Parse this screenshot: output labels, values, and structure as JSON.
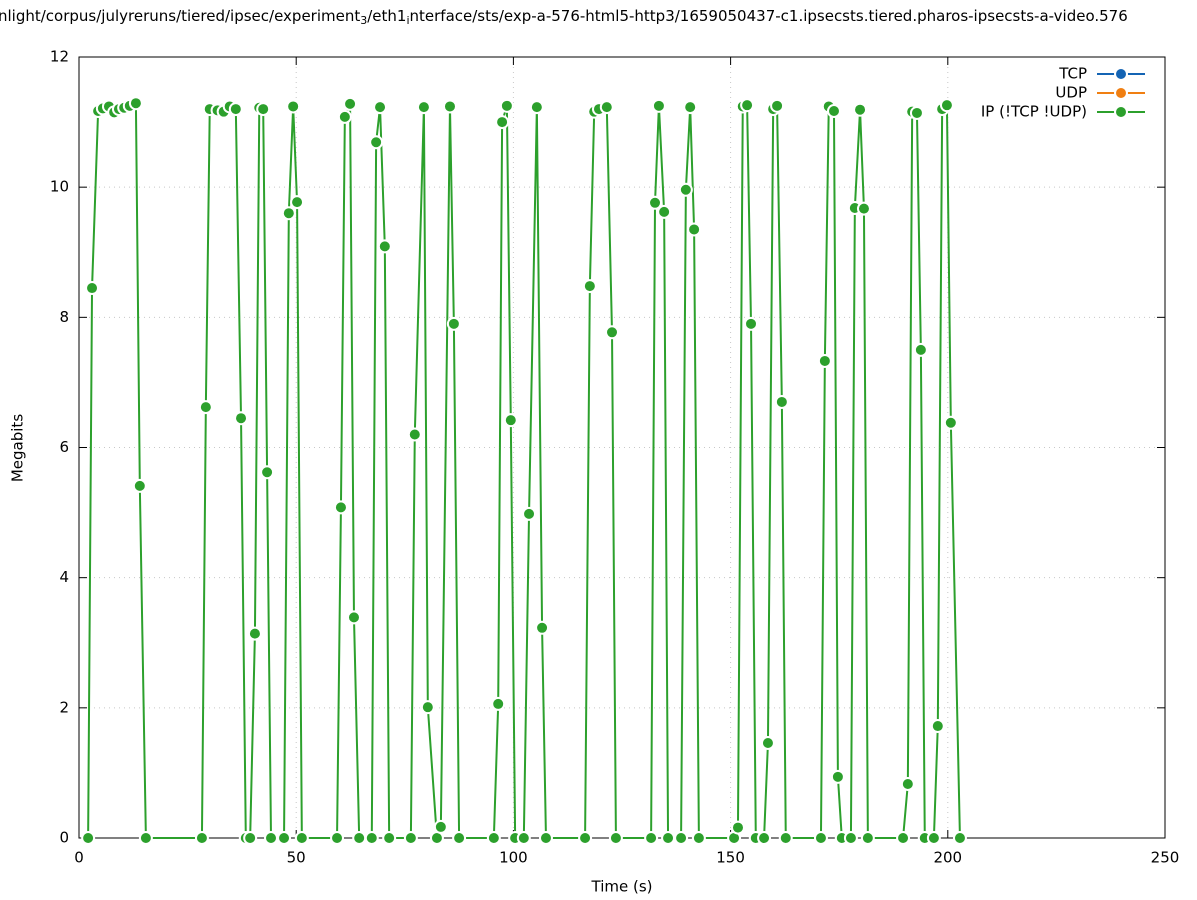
{
  "chart_data": {
    "type": "line",
    "title": [
      "nlight/corpus/julyreruns/tiered/ipsec/experiment",
      "3",
      "/eth1",
      "i",
      "nterface/sts/exp-a-576-html5-http3/1659050437-c1.ipsecsts.tiered.pharos-ipsecsts-a-video.576"
    ],
    "x_label": "Time (s)",
    "y_label": "Megabits",
    "xlim": [
      0,
      250
    ],
    "xticks": [
      0,
      50,
      100,
      150,
      200,
      250
    ],
    "ylim": [
      0,
      12
    ],
    "yticks": [
      0,
      2,
      4,
      6,
      8,
      10,
      12
    ],
    "grid": true,
    "legend": "top-right",
    "series": [
      {
        "name": "TCP",
        "color": "#1464b4",
        "x": [],
        "values": []
      },
      {
        "name": "UDP",
        "color": "#f07f12",
        "x": [],
        "values": []
      },
      {
        "name": "IP (!TCP  !UDP)",
        "color": "#2ca02c",
        "x": [
          2.1,
          3.0,
          4.4,
          5.5,
          6.9,
          8.1,
          9.2,
          10.4,
          11.7,
          13.1,
          14.0,
          15.4,
          28.3,
          29.2,
          30.1,
          31.9,
          33.3,
          34.7,
          36.1,
          37.3,
          38.4,
          39.4,
          40.5,
          41.5,
          42.4,
          43.3,
          44.2,
          47.2,
          48.3,
          49.3,
          50.2,
          51.3,
          59.4,
          60.3,
          61.2,
          62.4,
          63.3,
          64.5,
          67.4,
          68.4,
          69.3,
          70.4,
          71.4,
          76.4,
          77.3,
          79.4,
          80.3,
          82.4,
          83.3,
          85.4,
          86.3,
          87.5,
          95.5,
          96.5,
          97.4,
          98.5,
          99.4,
          100.4,
          102.4,
          103.6,
          105.4,
          106.6,
          107.5,
          116.5,
          117.6,
          118.6,
          119.7,
          121.5,
          122.7,
          123.6,
          131.7,
          132.6,
          133.5,
          134.7,
          135.6,
          138.6,
          139.7,
          140.7,
          141.6,
          142.7,
          150.8,
          151.7,
          152.8,
          153.8,
          154.7,
          155.8,
          157.7,
          158.6,
          159.8,
          160.7,
          161.8,
          162.7,
          170.8,
          171.7,
          172.6,
          173.8,
          174.7,
          175.6,
          177.7,
          178.6,
          179.8,
          180.7,
          181.6,
          189.7,
          190.8,
          191.8,
          192.9,
          193.8,
          194.7,
          196.8,
          197.7,
          198.7,
          199.8,
          200.7,
          202.8
        ],
        "values": [
          0,
          8.45,
          11.17,
          11.21,
          11.24,
          11.15,
          11.2,
          11.22,
          11.25,
          11.29,
          5.41,
          0,
          0,
          6.62,
          11.2,
          11.18,
          11.16,
          11.24,
          11.2,
          6.45,
          0,
          0,
          3.14,
          11.22,
          11.2,
          5.62,
          0,
          0,
          9.6,
          11.24,
          9.77,
          0,
          0,
          5.08,
          11.08,
          11.28,
          3.39,
          0,
          0,
          10.69,
          11.23,
          9.09,
          0,
          0,
          6.2,
          11.23,
          2.01,
          0,
          0.17,
          11.24,
          7.9,
          0,
          0,
          2.06,
          11.0,
          11.25,
          6.42,
          0,
          0,
          4.98,
          11.23,
          3.23,
          0,
          0,
          8.48,
          11.16,
          11.2,
          11.23,
          7.77,
          0,
          0,
          9.76,
          11.25,
          9.62,
          0,
          0,
          9.96,
          11.23,
          9.35,
          0,
          0,
          0.16,
          11.24,
          11.26,
          7.9,
          0,
          0,
          1.46,
          11.2,
          11.25,
          6.7,
          0,
          0,
          7.33,
          11.24,
          11.17,
          0.94,
          0,
          0,
          9.68,
          11.19,
          9.67,
          0,
          0,
          0.83,
          11.16,
          11.14,
          7.5,
          0,
          0,
          1.72,
          11.2,
          11.26,
          6.38,
          0
        ]
      }
    ]
  }
}
